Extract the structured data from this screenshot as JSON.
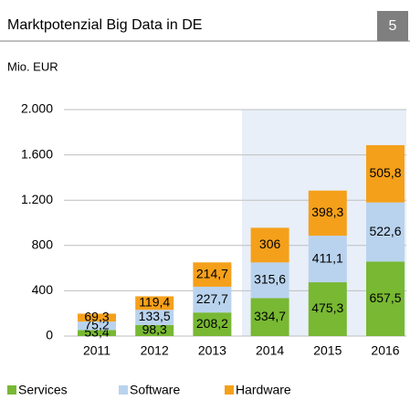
{
  "chart_data": {
    "type": "stacked_bar",
    "title": "Marktpotenzial Big Data in DE",
    "page_number": "5",
    "subtitle": "Mio. EUR",
    "categories": [
      "2011",
      "2012",
      "2013",
      "2014",
      "2015",
      "2016"
    ],
    "series": [
      {
        "name": "Services",
        "color": "#78b833",
        "values": [
          53.4,
          98.3,
          208.2,
          334.7,
          475.3,
          657.5
        ],
        "value_labels": [
          "53,4",
          "98,3",
          "208,2",
          "334,7",
          "475,3",
          "657,5"
        ]
      },
      {
        "name": "Software",
        "color": "#b9d3ee",
        "values": [
          75.2,
          133.5,
          227.7,
          315.6,
          411.1,
          522.6
        ],
        "value_labels": [
          "75,2",
          "133,5",
          "227,7",
          "315,6",
          "411,1",
          "522,6"
        ]
      },
      {
        "name": "Hardware",
        "color": "#f5a01a",
        "values": [
          69.3,
          119.4,
          214.7,
          306,
          398.3,
          505.8
        ],
        "value_labels": [
          "69,3",
          "119,4",
          "214,7",
          "306",
          "398,3",
          "505,8"
        ]
      }
    ],
    "ylim": [
      0,
      2000
    ],
    "yticks": [
      0,
      400,
      800,
      {
        "value": 1200,
        "label": "1.200"
      },
      {
        "value": 1600,
        "label": "1.600"
      },
      {
        "value": 2000,
        "label": "2.000"
      }
    ],
    "grid": true,
    "legend": "bottom"
  }
}
